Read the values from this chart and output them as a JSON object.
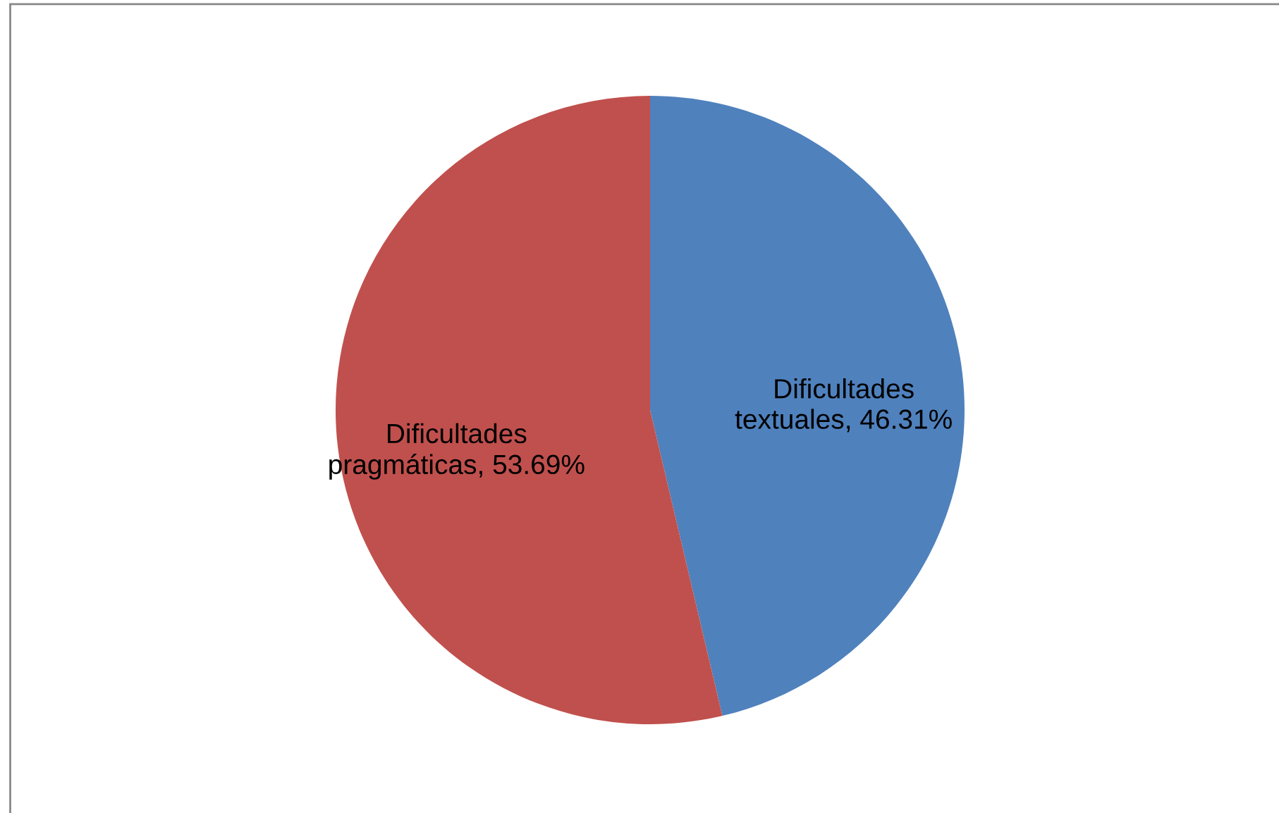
{
  "chart_data": {
    "type": "pie",
    "categories": [
      "Dificultades textuales",
      "Dificultades pragmáticas"
    ],
    "values": [
      46.31,
      53.69
    ],
    "colors": [
      "#4f81bd",
      "#c0504d"
    ],
    "value_labels": [
      "46.31%",
      "53.69%"
    ],
    "legend": false
  }
}
